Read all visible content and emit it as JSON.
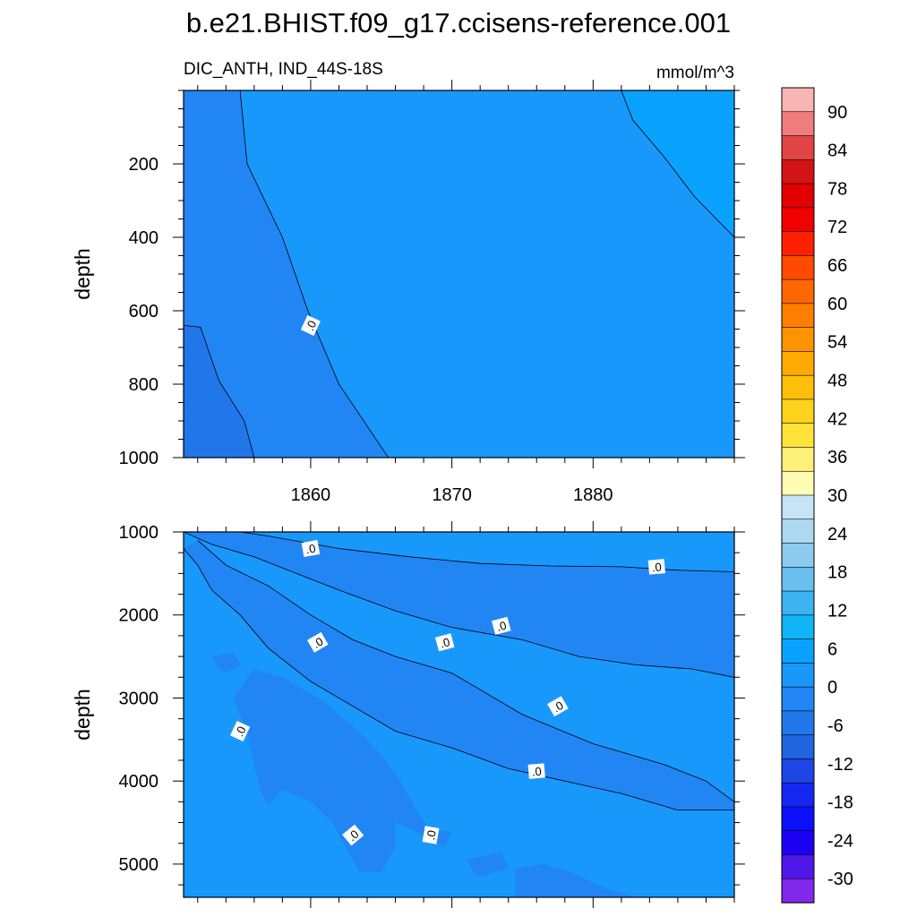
{
  "figure": {
    "title": "b.e21.BHIST.f09_g17.ccisens-reference.001"
  },
  "chart_data": [
    {
      "type": "contour",
      "panel": "upper",
      "title": "DIC_ANTH, IND_44S-18S",
      "units": "mmol/m^3",
      "xlabel": "",
      "ylabel": "depth",
      "xlim": [
        1851,
        1890
      ],
      "ylim": [
        1000,
        0
      ],
      "xticks": [
        1860,
        1870,
        1880
      ],
      "xtick_labels": [
        "1860",
        "1870",
        "1880"
      ],
      "yticks": [
        200,
        400,
        600,
        800,
        1000
      ],
      "ytick_labels": [
        "200",
        "400",
        "600",
        "800",
        "1000"
      ],
      "contour_labels": [
        {
          "text": ".0",
          "x": 1860,
          "y": 640,
          "angle": -65
        }
      ],
      "regions": [
        {
          "level": "-6 to 0",
          "color": "#2186f4",
          "points": [
            [
              1851,
              0
            ],
            [
              1855,
              0
            ],
            [
              1856.2,
              200
            ],
            [
              1858.3,
              400
            ],
            [
              1860,
              600
            ],
            [
              1862.5,
              800
            ],
            [
              1865.5,
              1000
            ],
            [
              1851,
              1000
            ]
          ]
        },
        {
          "level": "0 to 6",
          "color": "#1898fb",
          "points": [
            [
              1855,
              0
            ],
            [
              1855.5,
              200
            ],
            [
              1858,
              400
            ],
            [
              1859.8,
              600
            ],
            [
              1862,
              800
            ],
            [
              1865.5,
              1000
            ],
            [
              1890,
              1000
            ],
            [
              1890,
              0
            ]
          ]
        },
        {
          "level": "6 to 12",
          "color": "#0aa2ff",
          "points": [
            [
              1882,
              0
            ],
            [
              1882.8,
              80
            ],
            [
              1885,
              180
            ],
            [
              1887.2,
              290
            ],
            [
              1890,
              400
            ],
            [
              1890,
              0
            ]
          ]
        },
        {
          "level": "-12 to -6",
          "color": "#2176ea",
          "points": [
            [
              1851,
              640
            ],
            [
              1852.2,
              645
            ],
            [
              1853.5,
              790
            ],
            [
              1855.3,
              900
            ],
            [
              1856,
              1000
            ],
            [
              1851,
              1000
            ]
          ]
        }
      ],
      "contours": [
        {
          "level": 0,
          "points": [
            [
              1855,
              0
            ],
            [
              1855.5,
              200
            ],
            [
              1858,
              400
            ],
            [
              1859.8,
              600
            ],
            [
              1862,
              800
            ],
            [
              1865.5,
              1000
            ]
          ]
        },
        {
          "level": 6,
          "points": [
            [
              1882,
              0
            ],
            [
              1882.8,
              80
            ],
            [
              1885,
              180
            ],
            [
              1887.2,
              290
            ],
            [
              1890,
              400
            ]
          ]
        },
        {
          "level": -6,
          "points": [
            [
              1851,
              640
            ],
            [
              1852.2,
              645
            ],
            [
              1853.5,
              790
            ],
            [
              1855.3,
              900
            ],
            [
              1856,
              1000
            ]
          ]
        }
      ]
    },
    {
      "type": "contour",
      "panel": "lower",
      "title": "",
      "units": "",
      "xlabel": "",
      "ylabel": "depth",
      "xlim": [
        1851,
        1890
      ],
      "ylim": [
        5400,
        1000
      ],
      "xticks": [
        1860,
        1870,
        1880
      ],
      "xtick_labels": [
        "",
        "",
        ""
      ],
      "yticks": [
        1000,
        2000,
        3000,
        4000,
        5000
      ],
      "ytick_labels": [
        "1000",
        "2000",
        "3000",
        "4000",
        "5000"
      ],
      "contour_labels": [
        {
          "text": ".0",
          "x": 1860,
          "y": 1200,
          "angle": -10
        },
        {
          "text": ".0",
          "x": 1884.5,
          "y": 1420,
          "angle": -5
        },
        {
          "text": ".0",
          "x": 1873.5,
          "y": 2130,
          "angle": -15
        },
        {
          "text": ".0",
          "x": 1860.5,
          "y": 2330,
          "angle": -30
        },
        {
          "text": ".0",
          "x": 1869.5,
          "y": 2330,
          "angle": -15
        },
        {
          "text": ".0",
          "x": 1877.5,
          "y": 3100,
          "angle": -30
        },
        {
          "text": ".0",
          "x": 1855,
          "y": 3400,
          "angle": -65
        },
        {
          "text": ".0",
          "x": 1876,
          "y": 3880,
          "angle": -5
        },
        {
          "text": ".0",
          "x": 1863,
          "y": 4650,
          "angle": -40
        },
        {
          "text": ".0",
          "x": 1868.5,
          "y": 4650,
          "angle": -80
        }
      ],
      "regions": [
        {
          "level": "0 to 6",
          "color": "#1898fb",
          "points": [
            [
              1851,
              1000
            ],
            [
              1890,
              1000
            ],
            [
              1890,
              5400
            ],
            [
              1851,
              5400
            ]
          ]
        },
        {
          "level": "-6 to 0",
          "color": "#2186f4",
          "points": [
            [
              1851,
              1000
            ],
            [
              1855,
              1000
            ],
            [
              1857,
              1050
            ],
            [
              1862,
              1200
            ],
            [
              1867,
              1300
            ],
            [
              1872,
              1380
            ],
            [
              1877,
              1410
            ],
            [
              1882,
              1420
            ],
            [
              1886,
              1460
            ],
            [
              1890,
              1480
            ],
            [
              1890,
              2750
            ],
            [
              1887,
              2650
            ],
            [
              1883,
              2600
            ],
            [
              1879,
              2500
            ],
            [
              1875,
              2300
            ],
            [
              1870,
              2150
            ],
            [
              1866,
              1950
            ],
            [
              1862,
              1700
            ],
            [
              1859,
              1500
            ],
            [
              1856,
              1300
            ],
            [
              1853,
              1150
            ]
          ]
        },
        {
          "level": "-6 to 0",
          "color": "#2186f4",
          "points": [
            [
              1852,
              1100
            ],
            [
              1854,
              1400
            ],
            [
              1857,
              1650
            ],
            [
              1860,
              2000
            ],
            [
              1863,
              2300
            ],
            [
              1866,
              2500
            ],
            [
              1870,
              2700
            ],
            [
              1875,
              3200
            ],
            [
              1880,
              3550
            ],
            [
              1885,
              3800
            ],
            [
              1888,
              4000
            ],
            [
              1890,
              4250
            ],
            [
              1890,
              4350
            ],
            [
              1886,
              4350
            ],
            [
              1882,
              4150
            ],
            [
              1878,
              4000
            ],
            [
              1874,
              3850
            ],
            [
              1870,
              3600
            ],
            [
              1866,
              3400
            ],
            [
              1863,
              3100
            ],
            [
              1860,
              2800
            ],
            [
              1857,
              2400
            ],
            [
              1855,
              2000
            ],
            [
              1853,
              1700
            ],
            [
              1852,
              1400
            ],
            [
              1851,
              1200
            ]
          ]
        },
        {
          "level": "-6 to 0",
          "color": "#2186f4",
          "points": [
            [
              1856,
              2650
            ],
            [
              1858,
              2750
            ],
            [
              1861,
              3050
            ],
            [
              1864,
              3500
            ],
            [
              1866,
              3900
            ],
            [
              1867.5,
              4350
            ],
            [
              1868.5,
              4600
            ],
            [
              1870,
              4600
            ],
            [
              1869.5,
              4800
            ],
            [
              1868,
              4650
            ],
            [
              1866,
              4500
            ],
            [
              1866,
              4800
            ],
            [
              1865,
              5100
            ],
            [
              1863.5,
              5100
            ],
            [
              1862.5,
              4800
            ],
            [
              1861.5,
              4500
            ],
            [
              1860,
              4250
            ],
            [
              1858,
              4100
            ],
            [
              1857,
              4300
            ],
            [
              1856.5,
              4150
            ],
            [
              1856,
              3800
            ],
            [
              1855.5,
              3400
            ],
            [
              1854.5,
              3000
            ]
          ]
        },
        {
          "level": "-6 to 0",
          "color": "#2186f4",
          "points": [
            [
              1853,
              2500
            ],
            [
              1854.5,
              2450
            ],
            [
              1855,
              2600
            ],
            [
              1854,
              2700
            ],
            [
              1853.5,
              2650
            ]
          ]
        },
        {
          "level": "-6 to 0",
          "color": "#2186f4",
          "points": [
            [
              1871,
              4950
            ],
            [
              1873.5,
              4850
            ],
            [
              1874,
              5050
            ],
            [
              1872,
              5150
            ],
            [
              1871.5,
              5100
            ]
          ]
        },
        {
          "level": "-6 to 0",
          "color": "#2186f4",
          "points": [
            [
              1874.5,
              5400
            ],
            [
              1874.5,
              5050
            ],
            [
              1876.5,
              5000
            ],
            [
              1878.5,
              5100
            ],
            [
              1881,
              5300
            ],
            [
              1883,
              5400
            ]
          ]
        }
      ],
      "contours": [
        {
          "level": 0,
          "points": [
            [
              1855,
              1000
            ],
            [
              1857,
              1050
            ],
            [
              1862,
              1200
            ],
            [
              1867,
              1300
            ],
            [
              1872,
              1380
            ],
            [
              1877,
              1410
            ],
            [
              1882,
              1420
            ],
            [
              1886,
              1460
            ],
            [
              1890,
              1480
            ]
          ]
        },
        {
          "level": 0,
          "points": [
            [
              1851,
              1000
            ],
            [
              1853,
              1150
            ],
            [
              1856,
              1300
            ],
            [
              1859,
              1500
            ],
            [
              1862,
              1700
            ],
            [
              1866,
              1950
            ],
            [
              1870,
              2150
            ],
            [
              1875,
              2300
            ],
            [
              1879,
              2500
            ],
            [
              1883,
              2600
            ],
            [
              1887,
              2650
            ],
            [
              1890,
              2750
            ]
          ]
        },
        {
          "level": 0,
          "points": [
            [
              1852,
              1100
            ],
            [
              1854,
              1400
            ],
            [
              1857,
              1650
            ],
            [
              1860,
              2000
            ],
            [
              1863,
              2300
            ],
            [
              1866,
              2500
            ],
            [
              1870,
              2700
            ],
            [
              1875,
              3200
            ],
            [
              1880,
              3550
            ],
            [
              1885,
              3800
            ],
            [
              1888,
              4000
            ],
            [
              1890,
              4250
            ]
          ]
        },
        {
          "level": 0,
          "points": [
            [
              1851,
              1200
            ],
            [
              1852,
              1400
            ],
            [
              1853,
              1700
            ],
            [
              1855,
              2000
            ],
            [
              1857,
              2400
            ],
            [
              1860,
              2800
            ],
            [
              1863,
              3100
            ],
            [
              1866,
              3400
            ],
            [
              1870,
              3600
            ],
            [
              1874,
              3850
            ],
            [
              1878,
              4000
            ],
            [
              1882,
              4150
            ],
            [
              1886,
              4350
            ],
            [
              1890,
              4350
            ]
          ]
        }
      ]
    }
  ],
  "colorbar": {
    "labels": [
      "90",
      "84",
      "78",
      "72",
      "66",
      "60",
      "54",
      "48",
      "42",
      "36",
      "30",
      "24",
      "18",
      "12",
      "6",
      "0",
      "-6",
      "-12",
      "-18",
      "-24",
      "-30"
    ],
    "colors": [
      "#f9b4b4",
      "#f07c7c",
      "#e04444",
      "#d21414",
      "#e20000",
      "#f00000",
      "#ff2000",
      "#ff4a00",
      "#ff6800",
      "#ff7e00",
      "#ff9400",
      "#ffaa00",
      "#ffbf0a",
      "#ffd21c",
      "#ffe43c",
      "#fff07a",
      "#fffcb4",
      "#c6e4f6",
      "#acd8f2",
      "#8ccaef",
      "#68bff0",
      "#3cb4f2",
      "#10b4f7",
      "#0aa2ff",
      "#1898fb",
      "#2186f4",
      "#2176ea",
      "#2064de",
      "#1e46e4",
      "#1428f2",
      "#0a10fa",
      "#1c00f4",
      "#5018e8",
      "#8028ec"
    ]
  }
}
